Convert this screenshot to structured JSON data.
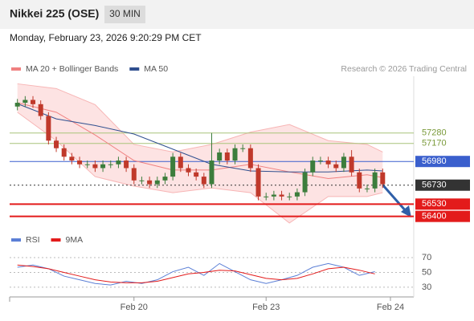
{
  "header": {
    "title": "Nikkei 225 (OSE)",
    "interval": "30 MIN",
    "datetime": "Monday, February 23, 2026 9:20:29 PM CET"
  },
  "chart_data": [
    {
      "type": "candlestick",
      "legend": [
        {
          "name": "MA 20 + Bollinger Bands",
          "color": "#f08080"
        },
        {
          "name": "MA 50",
          "color": "#2f4f8f"
        }
      ],
      "credit": "Research © 2026 Trading Central",
      "ylim": [
        56270,
        57880
      ],
      "xlim": [
        -1,
        51
      ],
      "xticks": [
        {
          "value": 15,
          "label": "Feb 20"
        },
        {
          "value": 32,
          "label": "Feb 23"
        },
        {
          "value": 48,
          "label": "Feb 24"
        }
      ],
      "up_color": "#3c7d3c",
      "down_color": "#c0392b",
      "open": [
        57560,
        57600,
        57630,
        57585,
        57460,
        57200,
        57120,
        57030,
        56990,
        56950,
        56950,
        56910,
        56950,
        56950,
        56990,
        56910,
        56780,
        56780,
        56740,
        56780,
        56820,
        57030,
        56910,
        56865,
        56820,
        56740,
        56990,
        57075,
        56990,
        57120,
        57120,
        56910,
        56610,
        56610,
        56630,
        56610,
        56610,
        56655,
        56865,
        56990,
        56990,
        56950,
        56910,
        57030,
        56865,
        56695,
        56695,
        56865
      ],
      "high": [
        57640,
        57670,
        57670,
        57625,
        57500,
        57240,
        57160,
        57070,
        57030,
        56990,
        56990,
        56990,
        56990,
        57030,
        57030,
        56950,
        56820,
        56820,
        56820,
        56860,
        57070,
        57070,
        56950,
        56905,
        56860,
        57280,
        57115,
        57115,
        57160,
        57160,
        57160,
        56950,
        56650,
        56670,
        56670,
        56650,
        56695,
        56905,
        57030,
        57030,
        57030,
        56990,
        57070,
        57100,
        56905,
        56735,
        56905,
        56905
      ],
      "low": [
        57520,
        57560,
        57545,
        57420,
        57160,
        57080,
        56990,
        56950,
        56910,
        56910,
        56870,
        56870,
        56910,
        56910,
        56870,
        56740,
        56740,
        56700,
        56700,
        56740,
        56780,
        56870,
        56825,
        56780,
        56700,
        56700,
        56950,
        56950,
        56950,
        57080,
        56870,
        56570,
        56570,
        56570,
        56570,
        56570,
        56570,
        56615,
        56825,
        56950,
        56910,
        56870,
        56870,
        56825,
        56655,
        56655,
        56655,
        56700
      ],
      "close": [
        57600,
        57630,
        57585,
        57460,
        57200,
        57120,
        57030,
        56990,
        56950,
        56950,
        56910,
        56950,
        56950,
        56990,
        56910,
        56780,
        56780,
        56740,
        56780,
        56820,
        57030,
        56910,
        56865,
        56820,
        56740,
        56990,
        57075,
        56990,
        57120,
        57120,
        56910,
        56610,
        56610,
        56630,
        56610,
        56610,
        56655,
        56865,
        56990,
        56990,
        56950,
        56910,
        57030,
        56865,
        56695,
        56695,
        56865,
        56740
      ],
      "line_x": [
        0,
        5,
        10,
        15,
        20,
        25,
        30,
        35,
        40,
        45,
        47
      ],
      "ma20": [
        57600,
        57500,
        57260,
        56990,
        56890,
        56890,
        56950,
        56870,
        56800,
        56840,
        56810
      ],
      "ma50": [
        57590,
        57430,
        57360,
        57270,
        57110,
        56950,
        56880,
        56870,
        56870,
        56890,
        56880
      ],
      "bb_upper": [
        57800,
        57750,
        57580,
        57160,
        57080,
        57160,
        57290,
        57370,
        57200,
        57160,
        57080
      ],
      "bb_lower": [
        57500,
        57200,
        56820,
        56720,
        56650,
        56700,
        56650,
        56330,
        56610,
        56610,
        56650
      ],
      "band_color": "#fbd0d0",
      "levels": [
        {
          "value": 57280,
          "color": "#a8c47a",
          "label_style": "plain",
          "line_style": "solid"
        },
        {
          "value": 57170,
          "color": "#a8c47a",
          "label_style": "plain",
          "line_style": "solid"
        },
        {
          "value": 56980,
          "color": "#3a5fcd",
          "label_style": "box",
          "line_style": "solid"
        },
        {
          "value": 56730,
          "color": "#333333",
          "label_style": "box",
          "line_style": "dotted"
        },
        {
          "value": 56530,
          "color": "#e31b1b",
          "label_style": "box",
          "line_style": "solid"
        },
        {
          "value": 56400,
          "color": "#e31b1b",
          "label_style": "box",
          "line_style": "solid"
        }
      ]
    },
    {
      "type": "line",
      "legend": [
        {
          "name": "RSI",
          "color": "#5b7fd6"
        },
        {
          "name": "9MA",
          "color": "#e31b1b"
        }
      ],
      "ylim": [
        19,
        82
      ],
      "yticks": [
        70,
        50,
        30
      ],
      "x": [
        0,
        2,
        4,
        6,
        8,
        10,
        12,
        14,
        16,
        18,
        20,
        22,
        24,
        26,
        28,
        30,
        32,
        34,
        36,
        38,
        40,
        42,
        44,
        46
      ],
      "series": [
        {
          "name": "RSI",
          "color": "#5b7fd6",
          "values": [
            57,
            60,
            55,
            45,
            40,
            35,
            33,
            38,
            35,
            40,
            51,
            57,
            46,
            62,
            51,
            40,
            35,
            40,
            46,
            57,
            62,
            57,
            46,
            51
          ]
        },
        {
          "name": "9MA",
          "color": "#e31b1b",
          "values": [
            60,
            58,
            55,
            50,
            45,
            40,
            37,
            36,
            36,
            38,
            43,
            48,
            50,
            53,
            52,
            47,
            42,
            40,
            42,
            48,
            55,
            57,
            53,
            48
          ]
        }
      ]
    }
  ]
}
